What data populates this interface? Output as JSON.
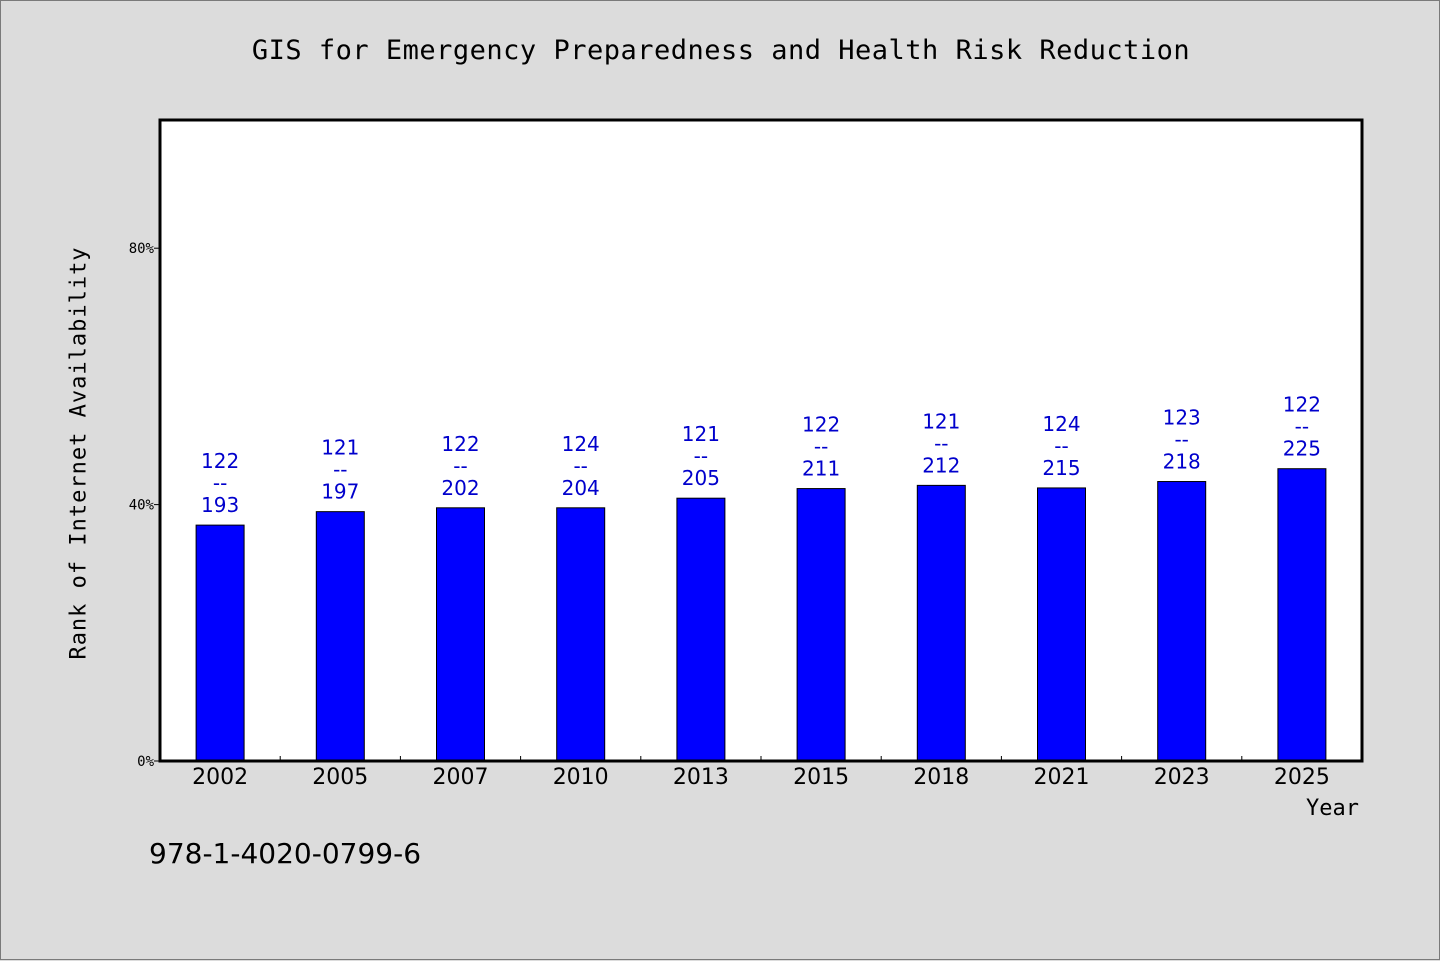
{
  "chart_data": {
    "type": "bar",
    "title": "GIS for Emergency Preparedness and Health Risk Reduction",
    "xlabel": "Year",
    "ylabel": "Rank of Internet Availability",
    "yticks": [
      "0%",
      "40%",
      "80%"
    ],
    "ylim": [
      0,
      100
    ],
    "grid": false,
    "categories": [
      "2002",
      "2005",
      "2007",
      "2010",
      "2013",
      "2015",
      "2018",
      "2021",
      "2023",
      "2025"
    ],
    "values": [
      36.8,
      38.9,
      39.5,
      39.5,
      41.0,
      42.5,
      43.0,
      42.6,
      43.6,
      45.6
    ],
    "labels": [
      [
        "122",
        "--",
        "193"
      ],
      [
        "121",
        "--",
        "197"
      ],
      [
        "122",
        "--",
        "202"
      ],
      [
        "124",
        "--",
        "204"
      ],
      [
        "121",
        "--",
        "205"
      ],
      [
        "122",
        "--",
        "211"
      ],
      [
        "121",
        "--",
        "212"
      ],
      [
        "124",
        "--",
        "215"
      ],
      [
        "123",
        "--",
        "218"
      ],
      [
        "122",
        "--",
        "225"
      ]
    ],
    "colors": {
      "bar": "#0000ff",
      "label": "#0000cc"
    }
  },
  "footer": {
    "isbn": "978-1-4020-0799-6"
  }
}
